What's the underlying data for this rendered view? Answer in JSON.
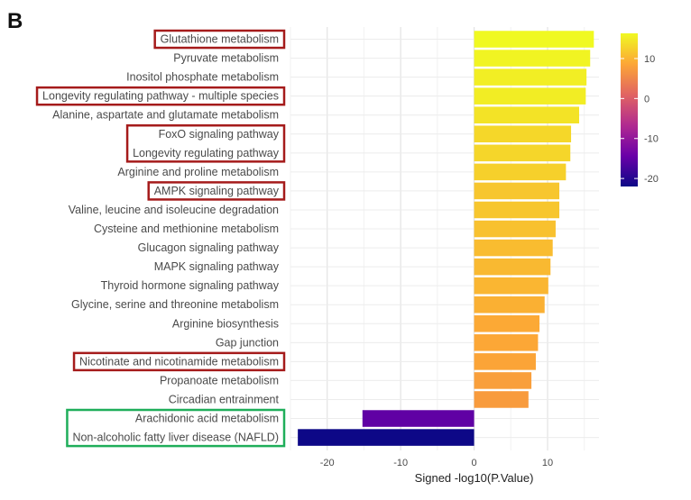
{
  "panel_label": "B",
  "chart_data": {
    "type": "bar",
    "orientation": "horizontal",
    "title": "",
    "xlabel": "Signed -log10(P.Value)",
    "ylabel": "",
    "xlim": [
      -25,
      17
    ],
    "xticks": [
      -20,
      -10,
      0,
      10
    ],
    "grid": true,
    "categories": [
      "Glutathione metabolism",
      "Pyruvate metabolism",
      "Inositol phosphate metabolism",
      "Longevity regulating pathway - multiple species",
      "Alanine, aspartate and glutamate metabolism",
      "FoxO signaling pathway",
      "Longevity regulating pathway",
      "Arginine and proline metabolism",
      "AMPK signaling pathway",
      "Valine, leucine and isoleucine degradation",
      "Cysteine and methionine metabolism",
      "Glucagon signaling pathway",
      "MAPK signaling pathway",
      "Thyroid hormone signaling pathway",
      "Glycine, serine and threonine metabolism",
      "Arginine biosynthesis",
      "Gap junction",
      "Nicotinate and nicotinamide metabolism",
      "Propanoate metabolism",
      "Circadian entrainment",
      "Arachidonic acid metabolism",
      "Non-alcoholic fatty liver disease (NAFLD)"
    ],
    "values": [
      16.3,
      15.8,
      15.3,
      15.2,
      14.3,
      13.2,
      13.1,
      12.5,
      11.6,
      11.6,
      11.1,
      10.7,
      10.4,
      10.1,
      9.6,
      8.9,
      8.7,
      8.4,
      7.8,
      7.4,
      -15.2,
      -24.0
    ],
    "highlight_red": [
      "Glutathione metabolism",
      "Longevity regulating pathway - multiple species",
      "FoxO signaling pathway",
      "Longevity regulating pathway",
      "AMPK signaling pathway",
      "Nicotinate and nicotinamide metabolism"
    ],
    "highlight_green": [
      "Arachidonic acid metabolism",
      "Non-alcoholic fatty liver disease (NAFLD)"
    ],
    "highlight_colors": {
      "red": "#a51b1b",
      "green": "#1fae5a"
    },
    "colorbar": {
      "min": -22,
      "max": 16.3,
      "ticks": [
        10,
        0,
        -10,
        -20
      ],
      "colors": [
        "#0d0887",
        "#6a00a8",
        "#b12a90",
        "#e16462",
        "#fca636",
        "#f0f921"
      ]
    }
  }
}
